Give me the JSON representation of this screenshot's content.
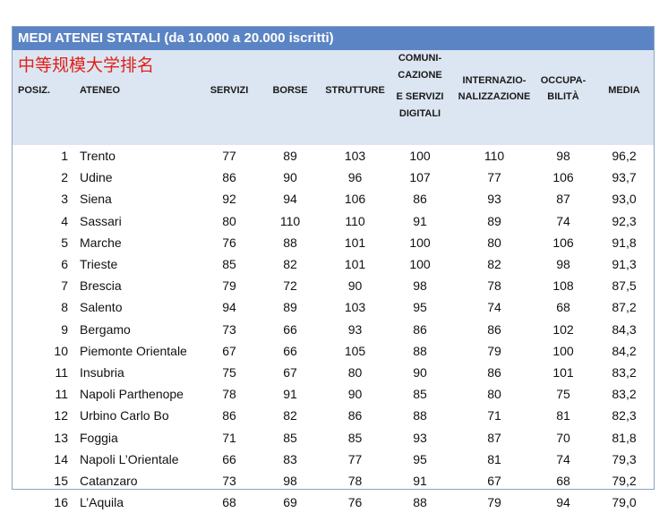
{
  "table": {
    "title": "MEDI ATENEI STATALI (da 10.000 a 20.000 iscritti)",
    "subtitle": "中等规模大学排名",
    "headers": {
      "posiz": "POSIZ.",
      "ateneo": "ATENEO",
      "servizi": "SERVIZI",
      "borse": "BORSE",
      "strutture": "STRUTTURE",
      "comunicazione_l1": "COMUNI-",
      "comunicazione_l2": "CAZIONE",
      "comunicazione_l3": "E SERVIZI",
      "comunicazione_l4": "DIGITALI",
      "internaz_l1": "INTERNAZIO-",
      "internaz_l2": "NALIZZAZIONE",
      "occup_l1": "OCCUPA-",
      "occup_l2": "BILITÀ",
      "media": "MEDIA"
    },
    "rows": [
      [
        "1",
        "Trento",
        "77",
        "89",
        "103",
        "100",
        "110",
        "98",
        "96,2"
      ],
      [
        "2",
        "Udine",
        "86",
        "90",
        "96",
        "107",
        "77",
        "106",
        "93,7"
      ],
      [
        "3",
        "Siena",
        "92",
        "94",
        "106",
        "86",
        "93",
        "87",
        "93,0"
      ],
      [
        "4",
        "Sassari",
        "80",
        "110",
        "110",
        "91",
        "89",
        "74",
        "92,3"
      ],
      [
        "5",
        "Marche",
        "76",
        "88",
        "101",
        "100",
        "80",
        "106",
        "91,8"
      ],
      [
        "6",
        "Trieste",
        "85",
        "82",
        "101",
        "100",
        "82",
        "98",
        "91,3"
      ],
      [
        "7",
        "Brescia",
        "79",
        "72",
        "90",
        "98",
        "78",
        "108",
        "87,5"
      ],
      [
        "8",
        "Salento",
        "94",
        "89",
        "103",
        "95",
        "74",
        "68",
        "87,2"
      ],
      [
        "9",
        "Bergamo",
        "73",
        "66",
        "93",
        "86",
        "86",
        "102",
        "84,3"
      ],
      [
        "10",
        "Piemonte Orientale",
        "67",
        "66",
        "105",
        "88",
        "79",
        "100",
        "84,2"
      ],
      [
        "11",
        "Insubria",
        "75",
        "67",
        "80",
        "90",
        "86",
        "101",
        "83,2"
      ],
      [
        "11",
        "Napoli Parthenope",
        "78",
        "91",
        "90",
        "85",
        "80",
        "75",
        "83,2"
      ],
      [
        "12",
        "Urbino Carlo Bo",
        "86",
        "82",
        "86",
        "88",
        "71",
        "81",
        "82,3"
      ],
      [
        "13",
        "Foggia",
        "71",
        "85",
        "85",
        "93",
        "87",
        "70",
        "81,8"
      ],
      [
        "14",
        "Napoli L’Orientale",
        "66",
        "83",
        "77",
        "95",
        "81",
        "74",
        "79,3"
      ],
      [
        "15",
        "Catanzaro",
        "73",
        "98",
        "78",
        "91",
        "67",
        "68",
        "79,2"
      ],
      [
        "16",
        "L’Aquila",
        "68",
        "69",
        "76",
        "88",
        "79",
        "94",
        "79,0"
      ]
    ]
  }
}
